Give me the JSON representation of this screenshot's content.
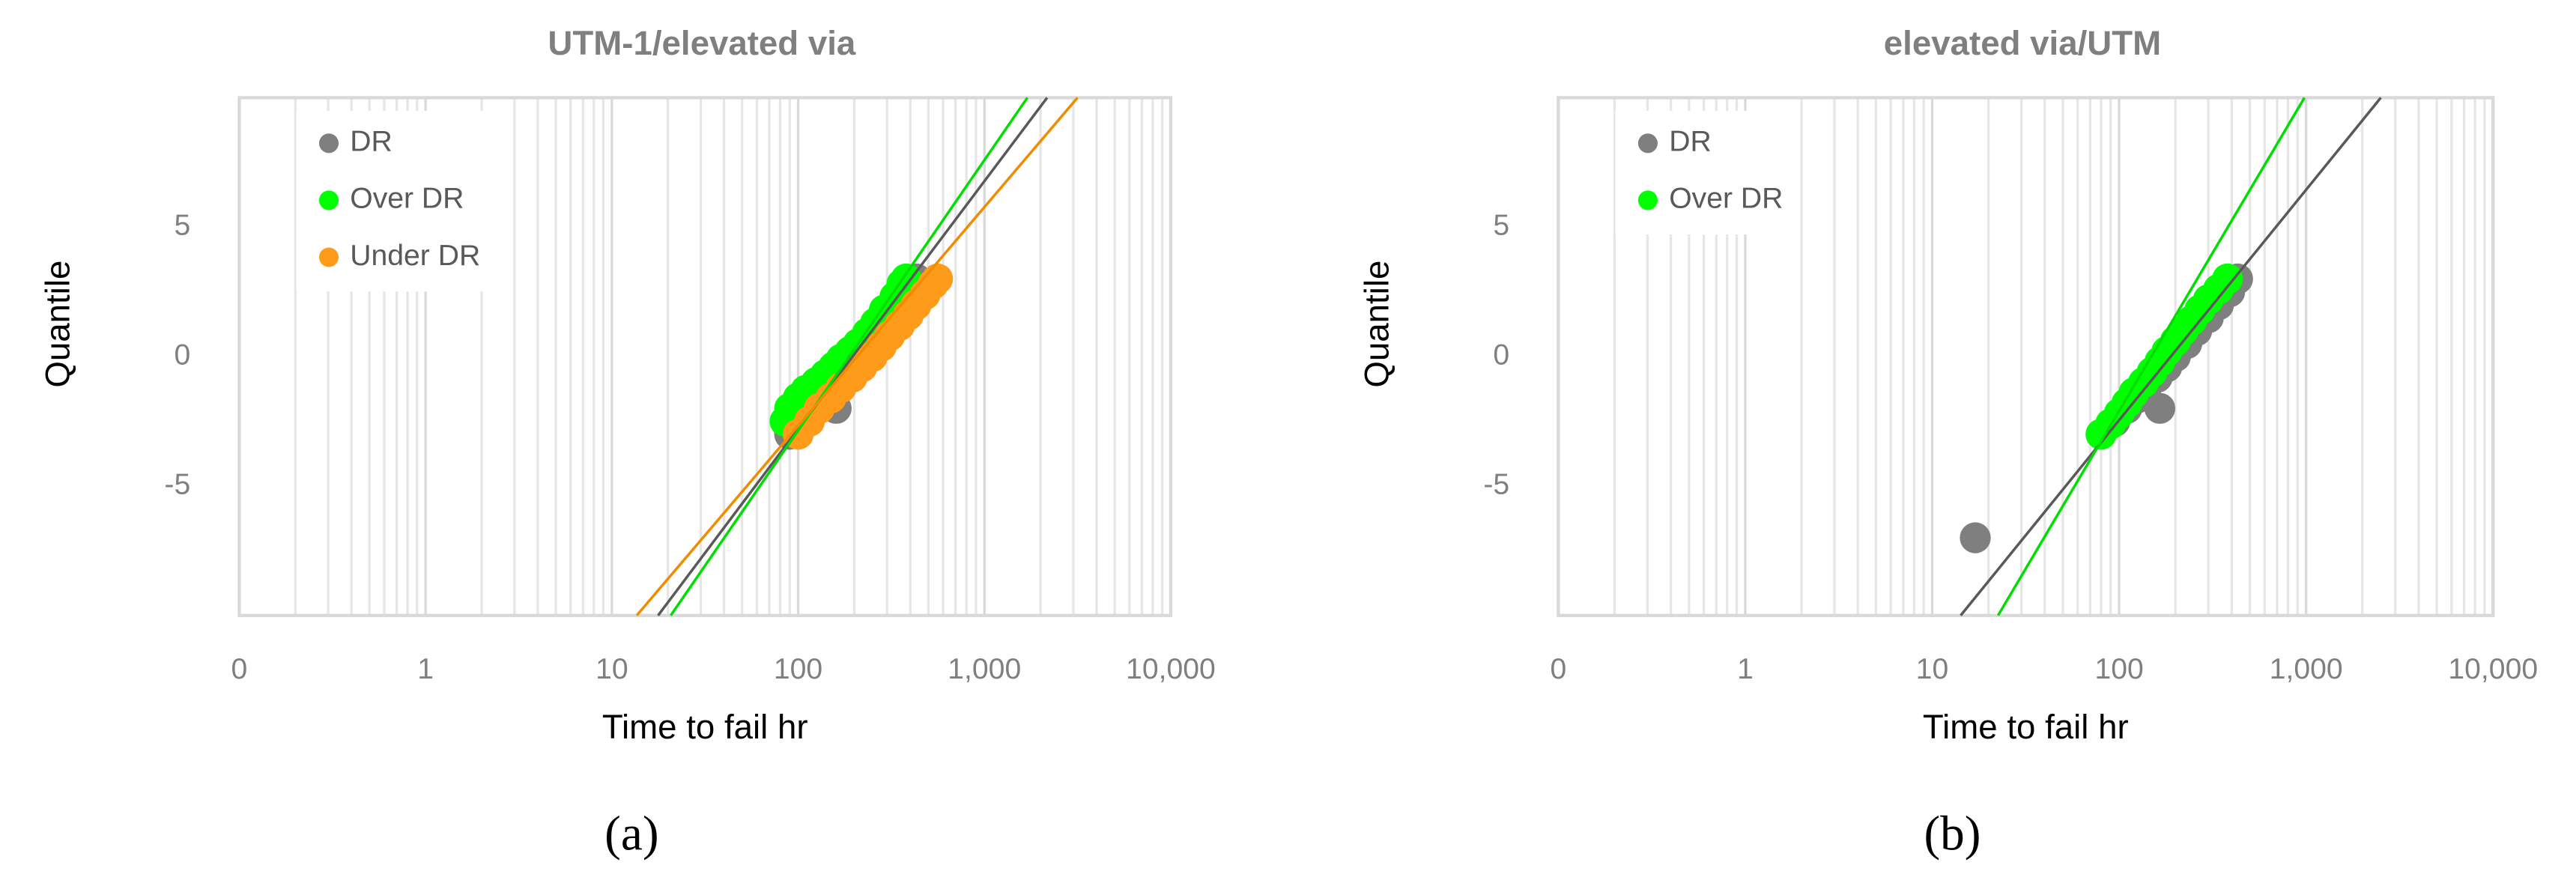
{
  "chart_data": [
    {
      "type": "scatter",
      "title": "UTM-1/elevated via",
      "xlabel": "Time to fail hr",
      "ylabel": "Quantile",
      "caption": "(a)",
      "xscale": "log",
      "xlim": [
        0.1,
        10000
      ],
      "ylim": [
        -10,
        10
      ],
      "xticks": [
        {
          "value": 0.1,
          "label": "0"
        },
        1,
        10,
        100,
        {
          "value": 1000,
          "label": "1,000"
        },
        {
          "value": 10000,
          "label": "10,000"
        }
      ],
      "yticks": [
        -5,
        0,
        5
      ],
      "grid": true,
      "minor_grid": true,
      "legend": "upper left",
      "series": [
        {
          "name": "DR",
          "color": "#7f7f7f",
          "fit_color": "#595959",
          "x": [
            90,
            100,
            110,
            120,
            135,
            150,
            160,
            170,
            190,
            210,
            240,
            270,
            300,
            340,
            380,
            430
          ],
          "values": [
            -3,
            -2.6,
            -2.2,
            -1.9,
            -1.5,
            -1.1,
            -2,
            -0.8,
            -0.4,
            0,
            0.5,
            1,
            1.5,
            2,
            2.5,
            3
          ],
          "fit": {
            "x": [
              17.7,
              2170
            ],
            "y": [
              -10,
              10
            ]
          }
        },
        {
          "name": "Over DR",
          "color": "#00ff00",
          "fit_color": "#00dd00",
          "x": [
            85,
            90,
            100,
            110,
            125,
            140,
            155,
            170,
            190,
            210,
            235,
            260,
            290,
            330,
            360,
            380
          ],
          "values": [
            -2.5,
            -2,
            -1.6,
            -1.3,
            -1,
            -0.7,
            -0.4,
            -0.1,
            0.2,
            0.5,
            0.9,
            1.3,
            1.8,
            2.3,
            2.8,
            3
          ],
          "fit": {
            "x": [
              20.7,
              1700
            ],
            "y": [
              -10,
              10
            ]
          }
        },
        {
          "name": "Under DR",
          "color": "#ff9b1a",
          "fit_color": "#f08c00",
          "x": [
            100,
            115,
            130,
            150,
            170,
            195,
            220,
            250,
            280,
            310,
            350,
            390,
            430,
            480,
            530,
            560
          ],
          "values": [
            -3,
            -2.5,
            -2,
            -1.6,
            -1.2,
            -0.8,
            -0.4,
            0,
            0.4,
            0.8,
            1.2,
            1.6,
            2,
            2.4,
            2.8,
            3
          ],
          "fit": {
            "x": [
              13.6,
              3160
            ],
            "y": [
              -10,
              10
            ]
          }
        }
      ]
    },
    {
      "type": "scatter",
      "title": "elevated via/UTM",
      "xlabel": "Time to fail hr",
      "ylabel": "Quantile",
      "caption": "(b)",
      "xscale": "log",
      "xlim": [
        0.1,
        10000
      ],
      "ylim": [
        -10,
        10
      ],
      "xticks": [
        {
          "value": 0.1,
          "label": "0"
        },
        1,
        10,
        100,
        {
          "value": 1000,
          "label": "1,000"
        },
        {
          "value": 10000,
          "label": "10,000"
        }
      ],
      "yticks": [
        -5,
        0,
        5
      ],
      "grid": true,
      "minor_grid": true,
      "legend": "upper left",
      "series": [
        {
          "name": "DR",
          "color": "#7f7f7f",
          "fit_color": "#595959",
          "x": [
            17,
            80,
            95,
            110,
            125,
            140,
            165,
            160,
            180,
            200,
            230,
            260,
            300,
            340,
            390,
            430
          ],
          "values": [
            -7,
            -3,
            -2.5,
            -2,
            -1.6,
            -1.2,
            -2,
            -0.8,
            -0.4,
            0,
            0.5,
            1,
            1.5,
            2,
            2.5,
            3
          ],
          "fit": {
            "x": [
              14.2,
              2510
            ],
            "y": [
              -10,
              10
            ]
          }
        },
        {
          "name": "Over DR",
          "color": "#00ff00",
          "fit_color": "#00dd00",
          "x": [
            80,
            90,
            100,
            110,
            120,
            135,
            150,
            165,
            180,
            200,
            220,
            245,
            270,
            300,
            340,
            380
          ],
          "values": [
            -3,
            -2.6,
            -2.2,
            -1.8,
            -1.4,
            -1,
            -0.6,
            -0.2,
            0.2,
            0.6,
            1,
            1.4,
            1.8,
            2.2,
            2.6,
            3
          ],
          "fit": {
            "x": [
              22.5,
              980
            ],
            "y": [
              -10,
              10
            ]
          }
        }
      ]
    }
  ]
}
